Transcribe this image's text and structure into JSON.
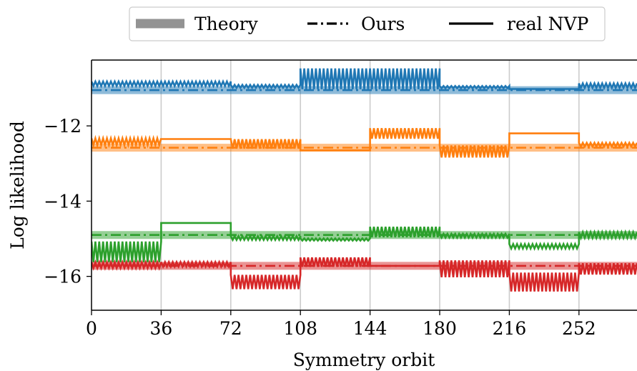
{
  "chart_data": {
    "type": "line",
    "xlabel": "Symmetry orbit",
    "ylabel": "Log likelihood",
    "xlim": [
      0,
      282
    ],
    "ylim": [
      -16.9,
      -10.25
    ],
    "xticks": [
      0,
      36,
      72,
      108,
      144,
      180,
      216,
      252
    ],
    "yticks": [
      -12,
      -14,
      -16
    ],
    "grid": "vertical lines at multiples of 36",
    "legend": {
      "placement": "top (outside plot)",
      "entries": [
        {
          "label": "Theory",
          "style": "thick translucent band"
        },
        {
          "label": "Ours",
          "style": "dash-dot"
        },
        {
          "label": "real NVP",
          "style": "solid"
        }
      ]
    },
    "segment_edges": [
      0,
      36,
      72,
      108,
      144,
      180,
      216,
      252,
      282
    ],
    "series": [
      {
        "color": "#1f77b4",
        "theory": -11.05,
        "ours": -11.05,
        "real_nvp_segments": [
          {
            "level": -10.88,
            "amplitude": 0.12
          },
          {
            "level": -10.88,
            "amplitude": 0.12
          },
          {
            "level": -10.95,
            "amplitude": 0.08
          },
          {
            "level": -10.75,
            "amplitude": 0.55
          },
          {
            "level": -10.75,
            "amplitude": 0.55
          },
          {
            "level": -10.97,
            "amplitude": 0.06
          },
          {
            "level": -11.02,
            "amplitude": 0.0
          },
          {
            "level": -10.93,
            "amplitude": 0.12
          }
        ]
      },
      {
        "color": "#ff7f0e",
        "theory": -12.58,
        "ours": -12.58,
        "real_nvp_segments": [
          {
            "level": -12.42,
            "amplitude": 0.18
          },
          {
            "level": -12.35,
            "amplitude": 0.0
          },
          {
            "level": -12.48,
            "amplitude": 0.25
          },
          {
            "level": -12.65,
            "amplitude": 0.0
          },
          {
            "level": -12.2,
            "amplitude": 0.28
          },
          {
            "level": -12.68,
            "amplitude": 0.32
          },
          {
            "level": -12.2,
            "amplitude": 0.0
          },
          {
            "level": -12.5,
            "amplitude": 0.1
          }
        ]
      },
      {
        "color": "#2ca02c",
        "theory": -14.9,
        "ours": -14.9,
        "real_nvp_segments": [
          {
            "level": -15.35,
            "amplitude": 0.55
          },
          {
            "level": -14.58,
            "amplitude": 0.0
          },
          {
            "level": -14.98,
            "amplitude": 0.1
          },
          {
            "level": -15.02,
            "amplitude": 0.06
          },
          {
            "level": -14.82,
            "amplitude": 0.28
          },
          {
            "level": -14.92,
            "amplitude": 0.1
          },
          {
            "level": -15.2,
            "amplitude": 0.12
          },
          {
            "level": -14.9,
            "amplitude": 0.15
          }
        ]
      },
      {
        "color": "#d62728",
        "theory": -15.72,
        "ours": -15.72,
        "real_nvp_segments": [
          {
            "level": -15.7,
            "amplitude": 0.15
          },
          {
            "level": -15.68,
            "amplitude": 0.12
          },
          {
            "level": -16.15,
            "amplitude": 0.38
          },
          {
            "level": -15.62,
            "amplitude": 0.25
          },
          {
            "level": -15.72,
            "amplitude": 0.0
          },
          {
            "level": -15.8,
            "amplitude": 0.45
          },
          {
            "level": -16.15,
            "amplitude": 0.5
          },
          {
            "level": -15.8,
            "amplitude": 0.3
          }
        ]
      }
    ]
  }
}
